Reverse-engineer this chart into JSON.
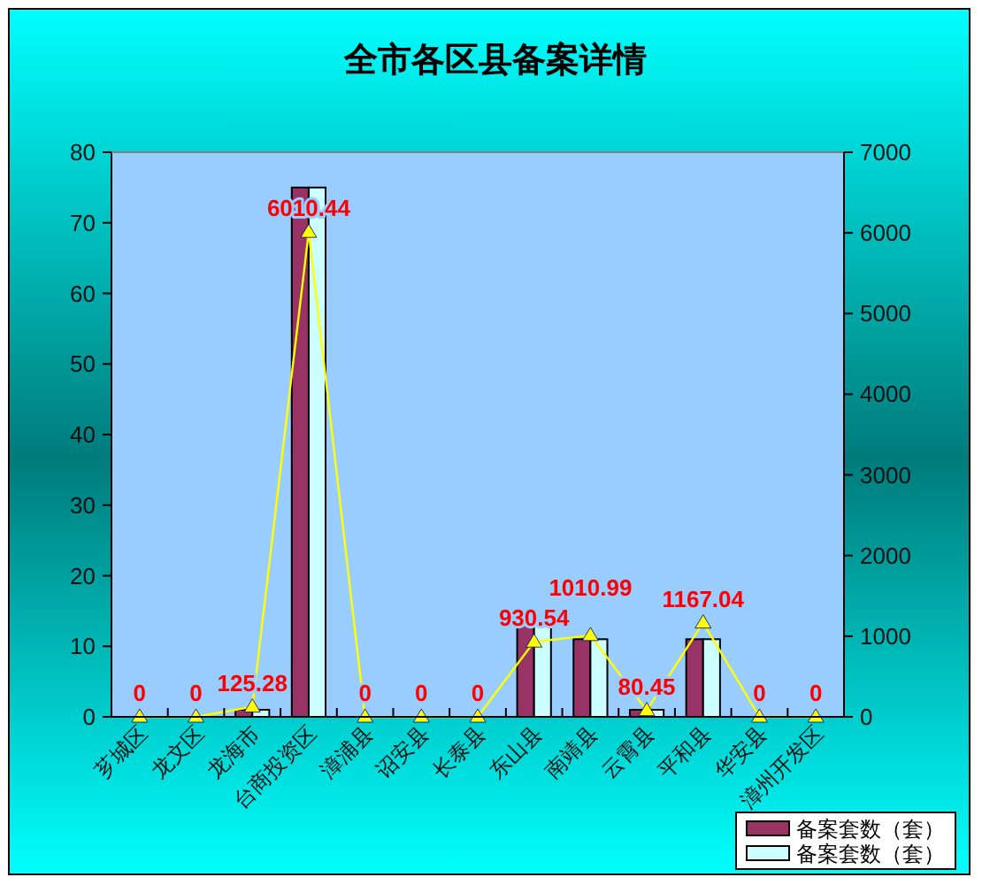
{
  "chart_data": {
    "type": "bar",
    "title": "全市各区县备案详情",
    "categories": [
      "芗城区",
      "龙文区",
      "龙海市",
      "台商投资区",
      "漳浦县",
      "诏安县",
      "长泰县",
      "东山县",
      "南靖县",
      "云霄县",
      "平和县",
      "华安县",
      "漳州开发区"
    ],
    "series": [
      {
        "name": "备案套数（套）",
        "color": "#993366",
        "values": [
          0,
          0,
          1,
          75,
          0,
          0,
          0,
          13,
          11,
          1,
          11,
          0,
          0
        ]
      },
      {
        "name": "备案套数（套）",
        "color": "#ccffff",
        "values": [
          0,
          0,
          1,
          75,
          0,
          0,
          0,
          13,
          11,
          1,
          11,
          0,
          0
        ]
      },
      {
        "type": "line",
        "axis": "y2",
        "color": "#ffff00",
        "marker": "triangle",
        "values": [
          0,
          0,
          125.28,
          6010.44,
          0,
          0,
          0,
          930.54,
          1010.99,
          80.45,
          1167.04,
          0,
          0
        ],
        "value_labels": [
          "0",
          "0",
          "125.28",
          "6010.44",
          "0",
          "0",
          "0",
          "930.54",
          "1010.99",
          "80.45",
          "1167.04",
          "0",
          "0"
        ]
      }
    ],
    "ylim": [
      0,
      80
    ],
    "yticks": [
      0,
      10,
      20,
      30,
      40,
      50,
      60,
      70,
      80
    ],
    "y2lim": [
      0,
      7000
    ],
    "y2ticks": [
      0,
      1000,
      2000,
      3000,
      4000,
      5000,
      6000,
      7000
    ],
    "grid": false,
    "legend": "bottom right"
  }
}
